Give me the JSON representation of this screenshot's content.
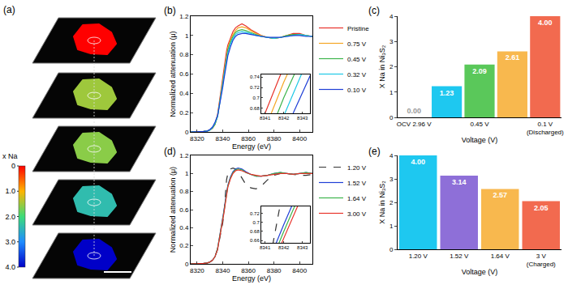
{
  "chart_data": [
    {
      "type": "map",
      "label": "(a)",
      "layer_values": [
        0,
        1.5,
        1.6,
        2.4,
        4.0
      ],
      "colorbar": {
        "title": "x Na",
        "range": [
          0,
          4
        ],
        "ticks": [
          0,
          {
            "value": 1,
            "label": "1.0"
          },
          {
            "value": 2,
            "label": "2.0"
          },
          {
            "value": 3,
            "label": "3.0"
          },
          {
            "value": 4,
            "label": "4.0"
          }
        ],
        "colors": [
          "#ff0000",
          "#ffb400",
          "#3cdc78",
          "#1e8cff",
          "#0000c8"
        ]
      }
    },
    {
      "type": "line",
      "label": "(b)",
      "xlabel": "Energy (eV)",
      "ylabel": "Normalized attenuation (μ)",
      "xlim": [
        8315,
        8410
      ],
      "xticks": [
        8320,
        8340,
        8360,
        8380,
        8400
      ],
      "ylim": [
        0,
        1.2
      ],
      "yticks": [
        0,
        0.2,
        0.4,
        0.6,
        0.8,
        1,
        1.2
      ],
      "grid": false,
      "legend": "right",
      "x": [
        8315,
        8320,
        8325,
        8328,
        8330,
        8332,
        8334,
        8336,
        8338,
        8340,
        8341,
        8342,
        8343,
        8344,
        8346,
        8348,
        8350,
        8352,
        8355,
        8358,
        8362,
        8366,
        8370,
        8375,
        8380,
        8385,
        8390,
        8395,
        8400,
        8405,
        8410
      ],
      "series": [
        {
          "name": "Pristine",
          "color": "#e8322a",
          "line_style": "solid",
          "values": [
            0,
            0,
            0.005,
            0.01,
            0.02,
            0.04,
            0.08,
            0.18,
            0.38,
            0.58,
            0.67,
            0.76,
            0.84,
            0.9,
            0.98,
            1.04,
            1.08,
            1.1,
            1.12,
            1.1,
            1.06,
            1.03,
            1.0,
            0.98,
            0.97,
            0.98,
            1.0,
            1.02,
            1.02,
            1.0,
            0.99
          ]
        },
        {
          "name": "0.75 V",
          "color": "#f5a623",
          "line_style": "solid",
          "values": [
            0,
            0,
            0.005,
            0.01,
            0.02,
            0.04,
            0.08,
            0.17,
            0.35,
            0.55,
            0.64,
            0.73,
            0.81,
            0.87,
            0.95,
            1.01,
            1.05,
            1.08,
            1.09,
            1.08,
            1.05,
            1.02,
            1.0,
            0.98,
            0.97,
            0.98,
            1.0,
            1.01,
            1.01,
            1.0,
            0.99
          ]
        },
        {
          "name": "0.45 V",
          "color": "#3cb44b",
          "line_style": "solid",
          "values": [
            0,
            0,
            0.005,
            0.01,
            0.02,
            0.04,
            0.08,
            0.16,
            0.33,
            0.52,
            0.61,
            0.7,
            0.78,
            0.85,
            0.93,
            0.99,
            1.03,
            1.05,
            1.06,
            1.05,
            1.03,
            1.01,
            0.99,
            0.98,
            0.97,
            0.98,
            1.0,
            1.01,
            1.01,
            1.0,
            0.99
          ]
        },
        {
          "name": "0.32 V",
          "color": "#1ec8e6",
          "line_style": "solid",
          "values": [
            0,
            0,
            0.005,
            0.01,
            0.02,
            0.045,
            0.09,
            0.16,
            0.31,
            0.49,
            0.58,
            0.665,
            0.75,
            0.82,
            0.91,
            0.97,
            1.01,
            1.03,
            1.04,
            1.03,
            1.02,
            1.0,
            0.99,
            0.98,
            0.97,
            0.98,
            0.99,
            1.0,
            1.01,
            1.0,
            0.99
          ]
        },
        {
          "name": "0.10 V",
          "color": "#1f3fd6",
          "line_style": "solid",
          "values": [
            0,
            0,
            0.005,
            0.01,
            0.025,
            0.05,
            0.1,
            0.17,
            0.3,
            0.46,
            0.55,
            0.63,
            0.71,
            0.79,
            0.88,
            0.95,
            0.99,
            1.01,
            1.02,
            1.02,
            1.01,
            1.0,
            0.99,
            0.98,
            0.98,
            0.98,
            0.99,
            1.0,
            1.0,
            0.99,
            0.99
          ]
        }
      ],
      "inset": {
        "xlim": [
          8340.8,
          8343.4
        ],
        "xticks": [
          8341,
          8342,
          8343
        ],
        "ylim": [
          0.67,
          0.745
        ],
        "yticks": [
          0.68,
          0.7,
          0.72,
          0.74
        ]
      }
    },
    {
      "type": "bar",
      "label": "(c)",
      "xlabel": "Voltage (V)",
      "ylabel": "X Na in Ni₃S₂",
      "categories": [
        "OCV 2.96 V",
        null,
        "0.45 V",
        null,
        "0.1 V\n(Discharged)"
      ],
      "values": [
        0,
        1.23,
        2.09,
        2.61,
        4
      ],
      "value_labels": [
        "0.00",
        "1.23",
        "2.09",
        "2.61",
        "4.00"
      ],
      "colors": [
        "#bdbdbd",
        "#1ec8f0",
        "#5ac85a",
        "#f8b84e",
        "#f26a4f"
      ],
      "ylim": [
        0,
        4
      ],
      "yticks": [
        0,
        1,
        2,
        3,
        4
      ],
      "data_labels": true,
      "grid": false
    },
    {
      "type": "line",
      "label": "(d)",
      "xlabel": "Energy (eV)",
      "ylabel": "Normalized attenuation (μ)",
      "xlim": [
        8315,
        8410
      ],
      "xticks": [
        8320,
        8340,
        8360,
        8380,
        8400
      ],
      "ylim": [
        0,
        1.2
      ],
      "yticks": [
        0,
        0.2,
        0.4,
        0.6,
        0.8,
        1,
        1.2
      ],
      "grid": false,
      "legend": "right",
      "x": [
        8315,
        8320,
        8325,
        8328,
        8330,
        8332,
        8334,
        8336,
        8338,
        8340,
        8341,
        8342,
        8343,
        8344,
        8346,
        8348,
        8350,
        8352,
        8355,
        8358,
        8362,
        8366,
        8370,
        8375,
        8380,
        8385,
        8390,
        8395,
        8400,
        8405,
        8410
      ],
      "series": [
        {
          "name": "1.20 V",
          "color": "#333333",
          "line_style": "dashed",
          "values": [
            0,
            0,
            0.005,
            0.01,
            0.02,
            0.04,
            0.08,
            0.16,
            0.3,
            0.45,
            0.56,
            0.78,
            0.93,
            1.0,
            1.05,
            1.06,
            1.05,
            1.02,
            0.95,
            0.88,
            0.84,
            0.83,
            0.86,
            0.93,
            0.98,
            1.0,
            1.0,
            0.99,
            0.98,
            0.98,
            0.99
          ]
        },
        {
          "name": "1.52 V",
          "color": "#1f3fd6",
          "line_style": "solid",
          "values": [
            0,
            0,
            0.005,
            0.01,
            0.02,
            0.04,
            0.08,
            0.17,
            0.33,
            0.51,
            0.595,
            0.695,
            0.79,
            0.87,
            0.96,
            1.02,
            1.05,
            1.06,
            1.05,
            1.02,
            0.99,
            0.97,
            0.97,
            0.98,
            1.0,
            1.01,
            1.0,
            0.99,
            1.0,
            1.01,
            1.0
          ]
        },
        {
          "name": "1.64 V",
          "color": "#3cb44b",
          "line_style": "solid",
          "values": [
            0,
            0,
            0.005,
            0.01,
            0.02,
            0.04,
            0.08,
            0.17,
            0.32,
            0.49,
            0.58,
            0.68,
            0.775,
            0.86,
            0.95,
            1.01,
            1.04,
            1.05,
            1.04,
            1.01,
            0.99,
            0.97,
            0.97,
            0.98,
            1.0,
            1.01,
            1.0,
            0.99,
            1.0,
            1.01,
            1.0
          ]
        },
        {
          "name": "3.00 V",
          "color": "#e8322a",
          "line_style": "solid",
          "values": [
            0,
            0,
            0.005,
            0.01,
            0.02,
            0.04,
            0.08,
            0.16,
            0.31,
            0.48,
            0.565,
            0.665,
            0.76,
            0.85,
            0.94,
            1.0,
            1.03,
            1.04,
            1.03,
            1.01,
            0.99,
            0.98,
            0.97,
            0.98,
            0.99,
            1.0,
            1.0,
            0.99,
            1.0,
            1.0,
            1.0
          ]
        }
      ],
      "inset": {
        "xlim": [
          8340.8,
          8343.4
        ],
        "xticks": [
          8341,
          8342,
          8343
        ],
        "ylim": [
          0.655,
          0.735
        ],
        "yticks": [
          0.66,
          0.68,
          0.7,
          0.72
        ]
      }
    },
    {
      "type": "bar",
      "label": "(e)",
      "xlabel": "Voltage (V)",
      "ylabel": "X Na in Ni₃S₂",
      "categories": [
        "1.20 V",
        "1.52 V",
        "1.64 V",
        "3 V\n(Charged)"
      ],
      "values": [
        4,
        3.14,
        2.57,
        2.05
      ],
      "value_labels": [
        "4.00",
        "3.14",
        "2.57",
        "2.05"
      ],
      "colors": [
        "#1ec8f0",
        "#8e6fd8",
        "#f8b84e",
        "#f26a4f"
      ],
      "ylim": [
        0,
        4
      ],
      "yticks": [
        0,
        1,
        2,
        3,
        4
      ],
      "data_labels": true,
      "grid": false
    }
  ]
}
